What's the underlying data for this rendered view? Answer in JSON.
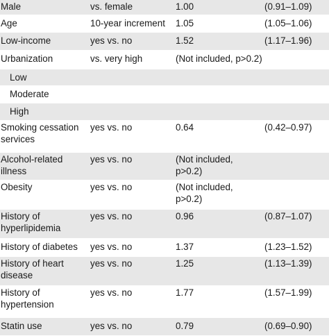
{
  "rows": [
    {
      "label": [
        "Male"
      ],
      "ref": "vs. female",
      "or": [
        "1.00"
      ],
      "ci": "(0.91–1.09)"
    },
    {
      "label": [
        "Age"
      ],
      "ref": "10-year increment",
      "or": [
        "1.05"
      ],
      "ci": "(1.05–1.06)"
    },
    {
      "label": [
        "Low-income"
      ],
      "ref": "yes vs. no",
      "or": [
        "1.52"
      ],
      "ci": "(1.17–1.96)"
    },
    {
      "label": [
        "Urbanization"
      ],
      "ref": "vs. very high",
      "or": [
        "(Not included, p>0.2)"
      ],
      "ci": ""
    },
    {
      "label": [
        "Low"
      ],
      "ref": "",
      "or": [
        ""
      ],
      "ci": ""
    },
    {
      "label": [
        "Moderate"
      ],
      "ref": "",
      "or": [
        ""
      ],
      "ci": ""
    },
    {
      "label": [
        "High"
      ],
      "ref": "",
      "or": [
        ""
      ],
      "ci": ""
    },
    {
      "label": [
        "Smoking cessation",
        "services"
      ],
      "ref": "yes vs. no",
      "or": [
        "0.64"
      ],
      "ci": "(0.42–0.97)"
    },
    {
      "label": [
        "Alcohol-related",
        "illness"
      ],
      "ref": "yes vs. no",
      "or": [
        "(Not included,",
        "p>0.2)"
      ],
      "ci": ""
    },
    {
      "label": [
        "Obesity"
      ],
      "ref": "yes vs. no",
      "or": [
        "(Not included,",
        "p>0.2)"
      ],
      "ci": ""
    },
    {
      "label": [
        "History of",
        "hyperlipidemia"
      ],
      "ref": "yes vs. no",
      "or": [
        "0.96"
      ],
      "ci": "(0.87–1.07)"
    },
    {
      "label": [
        "History of diabetes"
      ],
      "ref": "yes vs. no",
      "or": [
        "1.37"
      ],
      "ci": "(1.23–1.52)"
    },
    {
      "label": [
        "History of heart",
        "disease"
      ],
      "ref": "yes vs. no",
      "or": [
        "1.25"
      ],
      "ci": "(1.13–1.39)"
    },
    {
      "label": [
        "History of",
        "hypertension"
      ],
      "ref": "yes vs. no",
      "or": [
        "1.77"
      ],
      "ci": "(1.57–1.99)"
    },
    {
      "label": [
        "Statin use"
      ],
      "ref": "yes vs. no",
      "or": [
        "0.79"
      ],
      "ci": "(0.69–0.90)"
    }
  ]
}
